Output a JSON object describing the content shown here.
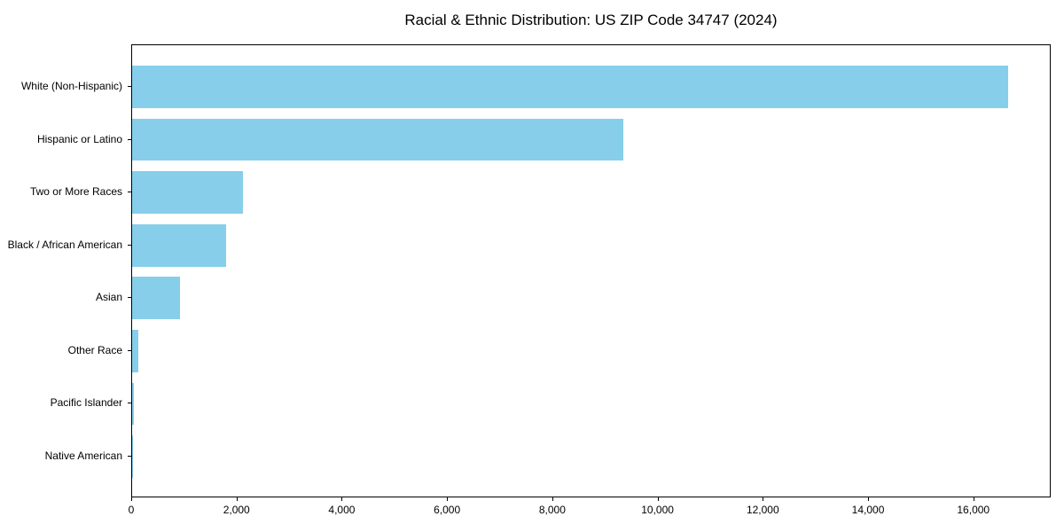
{
  "chart_data": {
    "type": "bar",
    "orientation": "horizontal",
    "title": "Racial & Ethnic Distribution: US ZIP Code 34747 (2024)",
    "categories": [
      "White (Non-Hispanic)",
      "Hispanic or Latino",
      "Two or More Races",
      "Black / African American",
      "Asian",
      "Other Race",
      "Pacific Islander",
      "Native American"
    ],
    "values": [
      16650,
      9330,
      2100,
      1780,
      910,
      120,
      35,
      15
    ],
    "xlabel": "",
    "ylabel": "",
    "xlim": [
      0,
      17470
    ],
    "xticks": [
      0,
      2000,
      4000,
      6000,
      8000,
      10000,
      12000,
      14000,
      16000
    ],
    "xtick_labels": [
      "0",
      "2,000",
      "4,000",
      "6,000",
      "8,000",
      "10,000",
      "12,000",
      "14,000",
      "16,000"
    ],
    "bar_color": "#87CEEB",
    "frame_color": "#000000",
    "background_color": "#ffffff",
    "grid": false,
    "legend": null
  }
}
